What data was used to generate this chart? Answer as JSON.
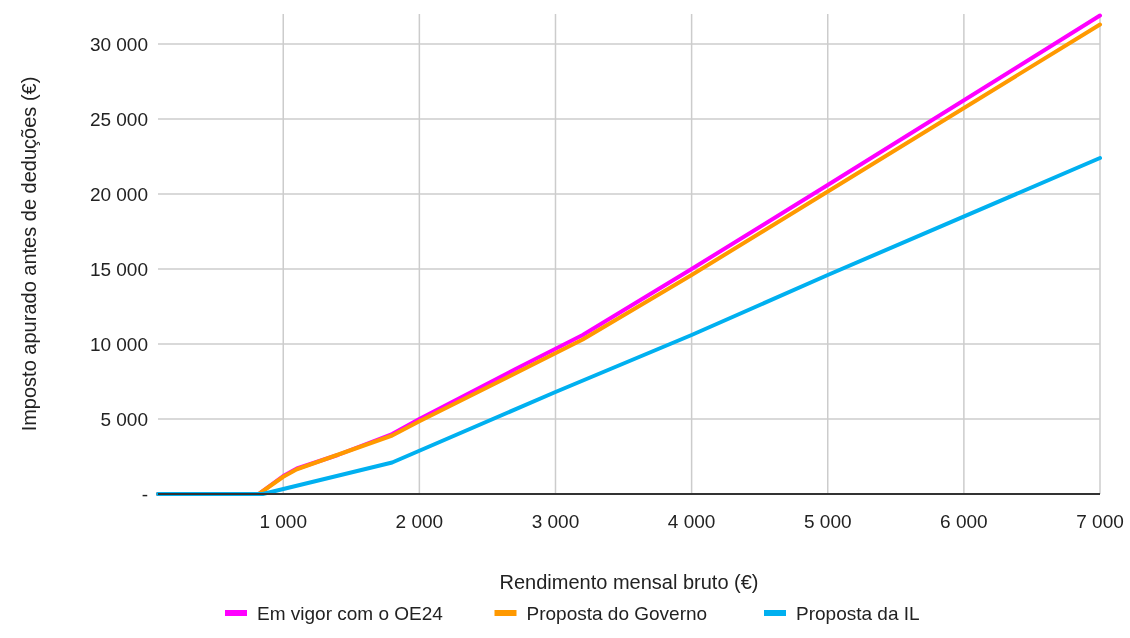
{
  "chart_data": {
    "type": "line",
    "xlabel": "Rendimento mensal bruto (€)",
    "ylabel": "Imposto apurado antes de deduções (€)",
    "xlim": [
      80,
      7000
    ],
    "xticks": [
      {
        "value": 1000,
        "label": "1 000"
      },
      {
        "value": 2000,
        "label": "2 000"
      },
      {
        "value": 3000,
        "label": "3 000"
      },
      {
        "value": 4000,
        "label": "4 000"
      },
      {
        "value": 5000,
        "label": "5 000"
      },
      {
        "value": 6000,
        "label": "6 000"
      },
      {
        "value": 7000,
        "label": "7 000"
      }
    ],
    "ylim": [
      0,
      32000
    ],
    "yticks": [
      {
        "value": 0,
        "label": "-"
      },
      {
        "value": 5000,
        "label": "5 000"
      },
      {
        "value": 10000,
        "label": "10 000"
      },
      {
        "value": 15000,
        "label": "15 000"
      },
      {
        "value": 20000,
        "label": "20 000"
      },
      {
        "value": 25000,
        "label": "25 000"
      },
      {
        "value": 30000,
        "label": "30 000"
      }
    ],
    "grid": true,
    "legend": "bottom",
    "marker": "none",
    "line_style": "solid",
    "series": [
      {
        "name": "Em vigor com o OE24",
        "color": "#ff00ff",
        "x": [
          80,
          820,
          1000,
          1100,
          1400,
          1800,
          2000,
          2700,
          3200,
          4000,
          5000,
          7000
        ],
        "values": [
          0,
          0,
          1200,
          1700,
          2600,
          4000,
          5000,
          8300,
          10600,
          15000,
          20600,
          31900
        ]
      },
      {
        "name": "Proposta do Governo",
        "color": "#ff9900",
        "x": [
          80,
          820,
          1000,
          1100,
          1800,
          2000,
          3200,
          4000,
          7000
        ],
        "values": [
          0,
          0,
          1150,
          1650,
          3900,
          4850,
          10300,
          14600,
          31300
        ]
      },
      {
        "name": "Proposta da IL",
        "color": "#00b0f0",
        "x": [
          80,
          850,
          1800,
          3000,
          4000,
          5000,
          7000
        ],
        "values": [
          0,
          0,
          2100,
          6800,
          10600,
          14600,
          22400
        ]
      }
    ]
  }
}
